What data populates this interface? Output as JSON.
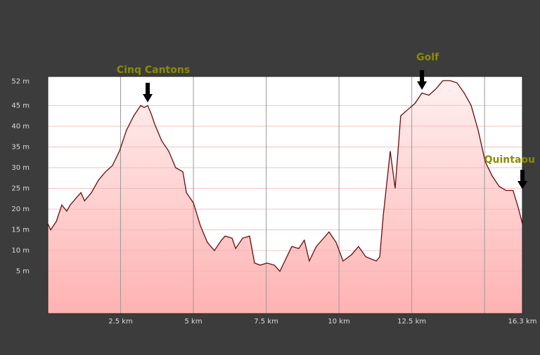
{
  "chart_data": {
    "type": "area",
    "x": [
      0,
      0.1,
      0.29,
      0.48,
      0.65,
      0.77,
      1.01,
      1.14,
      1.26,
      1.5,
      1.74,
      1.98,
      2.22,
      2.46,
      2.7,
      2.95,
      3.19,
      3.31,
      3.43,
      3.55,
      3.67,
      3.91,
      4.15,
      4.39,
      4.64,
      4.76,
      5.0,
      5.24,
      5.48,
      5.72,
      5.96,
      6.09,
      6.33,
      6.45,
      6.69,
      6.93,
      7.1,
      7.29,
      7.53,
      7.78,
      7.97,
      8.14,
      8.38,
      8.62,
      8.81,
      8.98,
      9.22,
      9.47,
      9.66,
      9.9,
      10.14,
      10.43,
      10.67,
      10.92,
      11.28,
      11.4,
      11.52,
      11.76,
      11.93,
      12.12,
      12.36,
      12.61,
      12.85,
      13.09,
      13.33,
      13.57,
      13.81,
      14.05,
      14.3,
      14.54,
      14.78,
      15.02,
      15.26,
      15.5,
      15.74,
      15.98,
      16.15,
      16.3
    ],
    "values": [
      16.5,
      15,
      17,
      21,
      19.5,
      21,
      23,
      24,
      22,
      24,
      27,
      29,
      30.5,
      34,
      39,
      42.5,
      45,
      44.5,
      45,
      43,
      40.5,
      36.5,
      34,
      30,
      29,
      24,
      21.5,
      16,
      12,
      10,
      12.5,
      13.5,
      13,
      10.5,
      13,
      13.5,
      7,
      6.5,
      7,
      6.5,
      5,
      7.5,
      11,
      10.5,
      12.5,
      7.5,
      11,
      13,
      14.5,
      12,
      7.5,
      9,
      11,
      8.5,
      7.5,
      8.5,
      18.5,
      34,
      25,
      42.5,
      44,
      45.5,
      48,
      47.5,
      49,
      51,
      51,
      50.5,
      48,
      45,
      39,
      31.5,
      28,
      25.5,
      24.5,
      24.5,
      20.5,
      16.5
    ],
    "color": "#6b0a0a",
    "fill": "#ffc4c4",
    "xlim": [
      0,
      16.3
    ],
    "ylim": [
      -5.2,
      52
    ],
    "xticks": [
      {
        "value": 2.5,
        "label": "2.5 km"
      },
      {
        "value": 5,
        "label": "5 km"
      },
      {
        "value": 7.5,
        "label": "7.5 km"
      },
      {
        "value": 10,
        "label": "10 km"
      },
      {
        "value": 12.5,
        "label": "12.5 km"
      },
      {
        "value": 15,
        "label": null
      },
      {
        "value": 16.3,
        "label": "16.3 km"
      }
    ],
    "yticks": [
      {
        "value": 5,
        "label": "5 m"
      },
      {
        "value": 10,
        "label": "10 m"
      },
      {
        "value": 15,
        "label": "15 m"
      },
      {
        "value": 20,
        "label": "20 m"
      },
      {
        "value": 25,
        "label": "25 m"
      },
      {
        "value": 30,
        "label": "30 m"
      },
      {
        "value": 35,
        "label": "35 m"
      },
      {
        "value": 40,
        "label": "40 m"
      },
      {
        "value": 45,
        "label": "45 m"
      },
      {
        "value": 52,
        "label": "52 m"
      }
    ],
    "grid": true,
    "annotations": [
      {
        "text": "Cinq Cantons",
        "x": 3.43
      },
      {
        "text": "Golf",
        "x": 12.85
      },
      {
        "text": "Quintaou",
        "x": 16.3
      }
    ]
  }
}
